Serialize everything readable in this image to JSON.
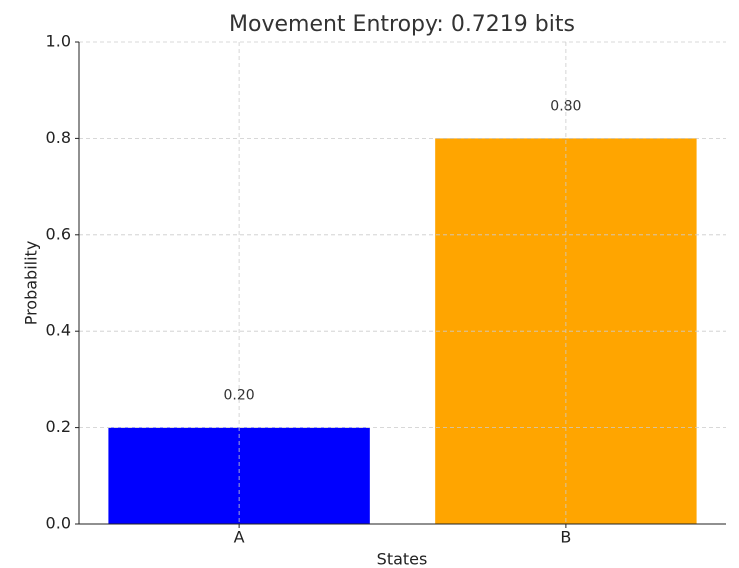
{
  "chart_data": {
    "type": "bar",
    "title": "Movement Entropy: 0.7219 bits",
    "x_label": "States",
    "y_label": "Probability",
    "categories": [
      "A",
      "B"
    ],
    "values": [
      0.2,
      0.8
    ],
    "value_labels": [
      "0.20",
      "0.80"
    ],
    "colors": [
      "#0000ff",
      "#ffa500"
    ],
    "ylim": [
      0,
      1
    ],
    "yticks": [
      {
        "value": 0,
        "label": "0.0"
      },
      0.2,
      0.4,
      0.6,
      0.8,
      {
        "value": 1,
        "label": "1.0"
      }
    ],
    "grid": true
  }
}
